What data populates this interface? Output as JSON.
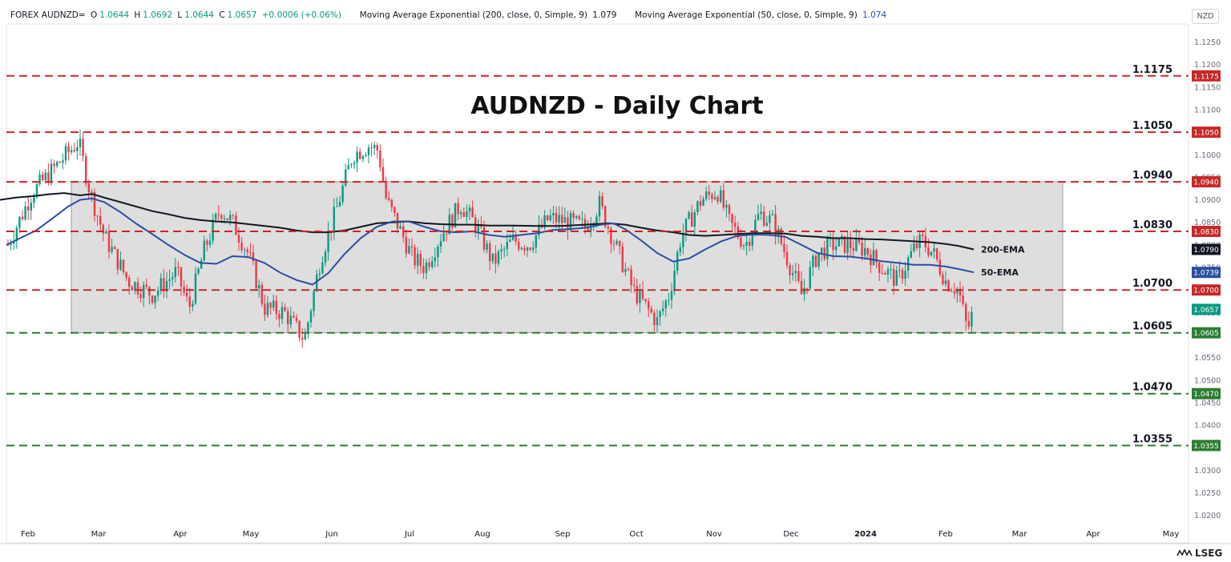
{
  "header": {
    "symbol": "FOREX AUDNZD=",
    "o_label": "O",
    "o_value": "1.0644",
    "h_label": "H",
    "h_value": "1.0692",
    "l_label": "L",
    "l_value": "1.0644",
    "c_label": "C",
    "c_value": "1.0657",
    "change": "+0.0006 (+0.06%)",
    "ema200_label": "Moving Average Exponential (200, close, 0, Simple, 9)",
    "ema200_value": "1.079",
    "ema50_label": "Moving Average Exponential (50, close, 0, Simple, 9)",
    "ema50_value": "1.074"
  },
  "currency": "NZD",
  "logo_text": "LSEG",
  "colors": {
    "up": "#089981",
    "down": "#f23645",
    "ema200": "#131722",
    "ema50": "#2a4fa0",
    "resistance": "#c62828",
    "support": "#2e7d32",
    "box": "#d3d3d3"
  },
  "chart_data": {
    "type": "candlestick",
    "title": "AUDNZD - Daily Chart",
    "ylim": [
      1.018,
      1.129
    ],
    "y_ticks": [
      "1.1250",
      "1.1200",
      "1.1150",
      "1.1100",
      "1.1050",
      "1.1000",
      "1.0950",
      "1.0900",
      "1.0850",
      "1.0800",
      "1.0750",
      "1.0700",
      "1.0650",
      "1.0600",
      "1.0550",
      "1.0500",
      "1.0450",
      "1.0400",
      "1.0350",
      "1.0300",
      "1.0250",
      "1.0200"
    ],
    "x_ticks": [
      "Feb",
      "Mar",
      "Apr",
      "May",
      "Jun",
      "Jul",
      "Aug",
      "Sep",
      "Oct",
      "Nov",
      "Dec",
      "2024",
      "Feb",
      "Mar",
      "Apr",
      "May"
    ],
    "levels": [
      {
        "value": 1.1175,
        "label": "1.1175",
        "kind": "resistance"
      },
      {
        "value": 1.105,
        "label": "1.1050",
        "kind": "resistance"
      },
      {
        "value": 1.094,
        "label": "1.0940",
        "kind": "resistance"
      },
      {
        "value": 1.083,
        "label": "1.0830",
        "kind": "resistance"
      },
      {
        "value": 1.07,
        "label": "1.0700",
        "kind": "resistance"
      },
      {
        "value": 1.0605,
        "label": "1.0605",
        "kind": "support"
      },
      {
        "value": 1.047,
        "label": "1.0470",
        "kind": "support"
      },
      {
        "value": 1.0355,
        "label": "1.0355",
        "kind": "support"
      }
    ],
    "range_box": {
      "top": 1.094,
      "bottom": 1.0605,
      "from": "Feb 2023",
      "to": "Mar 2024"
    },
    "series": [
      {
        "name": "200-EMA",
        "tag": "1.0790",
        "points": [
          [
            0,
            1.09
          ],
          [
            20,
            1.0905
          ],
          [
            40,
            1.0908
          ],
          [
            60,
            1.0912
          ],
          [
            80,
            1.0915
          ],
          [
            100,
            1.091
          ],
          [
            115,
            1.0913
          ],
          [
            130,
            1.0905
          ],
          [
            150,
            1.0895
          ],
          [
            170,
            1.0885
          ],
          [
            190,
            1.0875
          ],
          [
            210,
            1.0868
          ],
          [
            230,
            1.086
          ],
          [
            250,
            1.0855
          ],
          [
            270,
            1.0852
          ],
          [
            290,
            1.085
          ],
          [
            310,
            1.0846
          ],
          [
            330,
            1.0842
          ],
          [
            350,
            1.0838
          ],
          [
            370,
            1.0832
          ],
          [
            390,
            1.0828
          ],
          [
            410,
            1.0828
          ],
          [
            430,
            1.0832
          ],
          [
            450,
            1.084
          ],
          [
            470,
            1.0848
          ],
          [
            490,
            1.085
          ],
          [
            510,
            1.0852
          ],
          [
            530,
            1.0848
          ],
          [
            550,
            1.0846
          ],
          [
            570,
            1.0845
          ],
          [
            590,
            1.0845
          ],
          [
            610,
            1.0843
          ],
          [
            640,
            1.0843
          ],
          [
            670,
            1.0842
          ],
          [
            700,
            1.0842
          ],
          [
            730,
            1.0845
          ],
          [
            760,
            1.0848
          ],
          [
            780,
            1.0845
          ],
          [
            800,
            1.0838
          ],
          [
            820,
            1.0832
          ],
          [
            840,
            1.0828
          ],
          [
            860,
            1.0822
          ],
          [
            880,
            1.082
          ],
          [
            900,
            1.0822
          ],
          [
            920,
            1.0824
          ],
          [
            940,
            1.0826
          ],
          [
            960,
            1.0826
          ],
          [
            980,
            1.0825
          ],
          [
            1000,
            1.082
          ],
          [
            1020,
            1.0818
          ],
          [
            1040,
            1.0815
          ],
          [
            1060,
            1.0815
          ],
          [
            1080,
            1.0813
          ],
          [
            1100,
            1.0812
          ],
          [
            1120,
            1.081
          ],
          [
            1140,
            1.0808
          ],
          [
            1160,
            1.0806
          ],
          [
            1180,
            1.0802
          ],
          [
            1195,
            1.0798
          ],
          [
            1215,
            1.079
          ]
        ]
      },
      {
        "name": "50-EMA",
        "tag": "1.0739",
        "points": [
          [
            8,
            1.08
          ],
          [
            25,
            1.0815
          ],
          [
            45,
            1.0832
          ],
          [
            65,
            1.0858
          ],
          [
            85,
            1.0885
          ],
          [
            100,
            1.09
          ],
          [
            115,
            1.0903
          ],
          [
            130,
            1.0895
          ],
          [
            150,
            1.0873
          ],
          [
            170,
            1.0847
          ],
          [
            190,
            1.0824
          ],
          [
            210,
            1.08
          ],
          [
            230,
            1.0778
          ],
          [
            250,
            1.076
          ],
          [
            270,
            1.0758
          ],
          [
            290,
            1.0775
          ],
          [
            310,
            1.0773
          ],
          [
            330,
            1.076
          ],
          [
            350,
            1.0738
          ],
          [
            370,
            1.0722
          ],
          [
            390,
            1.0712
          ],
          [
            410,
            1.0738
          ],
          [
            430,
            1.078
          ],
          [
            450,
            1.0815
          ],
          [
            470,
            1.084
          ],
          [
            490,
            1.0852
          ],
          [
            510,
            1.0852
          ],
          [
            530,
            1.084
          ],
          [
            550,
            1.083
          ],
          [
            570,
            1.0828
          ],
          [
            590,
            1.083
          ],
          [
            610,
            1.0822
          ],
          [
            630,
            1.0818
          ],
          [
            650,
            1.0822
          ],
          [
            670,
            1.0826
          ],
          [
            690,
            1.0833
          ],
          [
            710,
            1.0835
          ],
          [
            730,
            1.0838
          ],
          [
            750,
            1.0845
          ],
          [
            765,
            1.0848
          ],
          [
            780,
            1.0835
          ],
          [
            800,
            1.081
          ],
          [
            820,
            1.0782
          ],
          [
            840,
            1.0763
          ],
          [
            860,
            1.077
          ],
          [
            880,
            1.079
          ],
          [
            900,
            1.0808
          ],
          [
            920,
            1.082
          ],
          [
            940,
            1.0823
          ],
          [
            960,
            1.0822
          ],
          [
            980,
            1.0818
          ],
          [
            1000,
            1.08
          ],
          [
            1020,
            1.0782
          ],
          [
            1040,
            1.0775
          ],
          [
            1060,
            1.0774
          ],
          [
            1080,
            1.077
          ],
          [
            1100,
            1.0764
          ],
          [
            1120,
            1.076
          ],
          [
            1140,
            1.0756
          ],
          [
            1160,
            1.0756
          ],
          [
            1180,
            1.0752
          ],
          [
            1200,
            1.0745
          ],
          [
            1215,
            1.0739
          ]
        ]
      }
    ],
    "last_price_tag": "1.0657",
    "ohlc_last": {
      "open": 1.0644,
      "high": 1.0692,
      "low": 1.0644,
      "close": 1.0657
    }
  }
}
